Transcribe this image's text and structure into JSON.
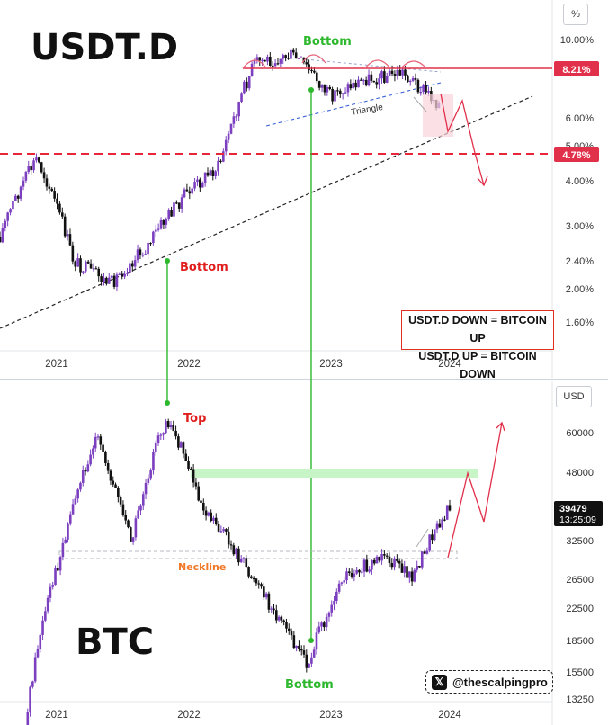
{
  "top_panel": {
    "symbol": "USDT.D",
    "unit": "%",
    "price_ticks": [
      "10.00%",
      "8.00%",
      "6.00%",
      "5.00%",
      "4.00%",
      "3.00%",
      "2.40%",
      "2.00%",
      "1.60%"
    ],
    "price_ticks_values": [
      10.0,
      8.0,
      6.0,
      5.0,
      4.0,
      3.0,
      2.4,
      2.0,
      1.6
    ],
    "x_ticks": [
      "2021",
      "2022",
      "2023",
      "2024"
    ],
    "last_price_label": "8.21%",
    "level_label": "4.78%",
    "annotations": {
      "bottom_1": "Bottom",
      "bottom_2": "Bottom",
      "triangle": "Triangle"
    },
    "legend": {
      "line1": "USDT.D DOWN = BITCOIN UP",
      "line2": "USDT.D UP = BITCOIN DOWN"
    }
  },
  "bottom_panel": {
    "symbol": "BTC",
    "unit": "USD",
    "price_ticks": [
      "60000",
      "48000",
      "32500",
      "26500",
      "22500",
      "18500",
      "15500",
      "13250"
    ],
    "price_ticks_values": [
      60000,
      48000,
      32500,
      26500,
      22500,
      18500,
      15500,
      13250
    ],
    "x_ticks": [
      "2021",
      "2022",
      "2023",
      "2024"
    ],
    "last_price_label": "39479",
    "countdown_label": "13:25:09",
    "annotations": {
      "top": "Top",
      "neckline": "Neckline",
      "bottom": "Bottom"
    },
    "handle": "@thescalpingpro"
  },
  "colors": {
    "candles": "#7b3fbf",
    "candles_dark": "#111111",
    "level_red": "#e0304a",
    "dashed_red": "#e8263a",
    "annotation_green": "#2eb82e",
    "annotation_red": "#e01e1e",
    "neckline_orange": "#f07828",
    "resistance_zone": "#c8f5c8"
  },
  "chart_data": [
    {
      "type": "candlestick",
      "title": "USDT.D",
      "x": [
        "2020-09",
        "2021-01",
        "2021-05",
        "2021-09",
        "2021-12",
        "2022-03",
        "2022-06",
        "2022-09",
        "2022-12",
        "2023-03",
        "2023-06",
        "2023-09",
        "2023-11"
      ],
      "close": [
        2.8,
        4.6,
        2.4,
        2.05,
        2.6,
        3.6,
        4.4,
        8.4,
        8.8,
        6.8,
        7.5,
        7.8,
        6.5
      ],
      "ylim": [
        1.5,
        11.0
      ],
      "log_scale": true,
      "levels": [
        8.21,
        4.78
      ],
      "grid": false
    },
    {
      "type": "candlestick",
      "title": "BTC",
      "x": [
        "2020-09",
        "2021-01",
        "2021-04",
        "2021-07",
        "2021-11",
        "2022-02",
        "2022-05",
        "2022-08",
        "2022-11",
        "2023-03",
        "2023-07",
        "2023-10",
        "2023-12"
      ],
      "close": [
        11000,
        30000,
        58000,
        32000,
        65000,
        40000,
        30000,
        22000,
        16000,
        27000,
        29500,
        27000,
        39479
      ],
      "ylim": [
        12000,
        75000
      ],
      "log_scale": true,
      "levels": [
        48000,
        30500
      ],
      "grid": false
    }
  ]
}
